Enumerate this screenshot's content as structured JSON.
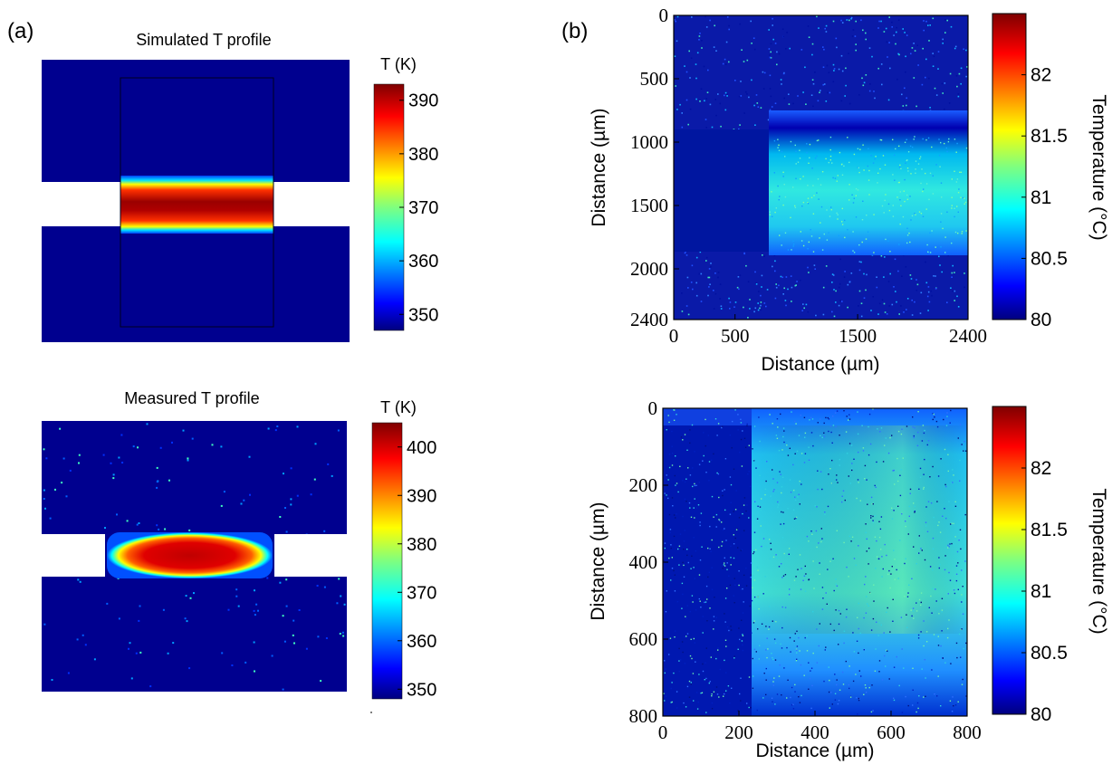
{
  "panel_labels": {
    "a": "(a)",
    "b": "(b)"
  },
  "colors": {
    "jet": [
      "#00007f",
      "#0000ff",
      "#007fff",
      "#00ffff",
      "#7fff7f",
      "#ffff00",
      "#ff7f00",
      "#ff0000",
      "#7f0000"
    ],
    "background_plate": "#00008f",
    "gap": "#ffffff"
  },
  "chart_data": [
    {
      "type": "heatmap",
      "id": "simulated",
      "title": "Simulated T profile",
      "colorbar": {
        "label": "T (K)",
        "ticks": [
          390,
          380,
          370,
          360,
          350
        ],
        "range": [
          347,
          393
        ]
      },
      "description_values": {
        "background_K": 350,
        "peak_K": 392
      }
    },
    {
      "type": "heatmap",
      "id": "measured",
      "title": "Measured T profile",
      "colorbar": {
        "label": "T (K)",
        "ticks": [
          400,
          390,
          380,
          370,
          360,
          350
        ],
        "range": [
          348,
          405
        ]
      },
      "description_values": {
        "background_K": 350,
        "peak_K": 400
      }
    },
    {
      "type": "heatmap",
      "id": "b-top",
      "xlabel": "Distance (µm)",
      "ylabel": "Distance (µm)",
      "xticks": [
        0,
        500,
        1500,
        2400
      ],
      "yticks": [
        0,
        500,
        1000,
        1500,
        2000,
        2400
      ],
      "xlim": [
        0,
        2400
      ],
      "ylim": [
        2400,
        0
      ],
      "colorbar": {
        "label": "Temperature (°C)",
        "ticks": [
          82,
          81.5,
          81,
          80.5,
          80
        ],
        "range": [
          80,
          82.5
        ]
      }
    },
    {
      "type": "heatmap",
      "id": "b-bottom",
      "xlabel": "Distance (µm)",
      "ylabel": "Distance (µm)",
      "xticks": [
        0,
        200,
        400,
        600,
        800
      ],
      "yticks": [
        0,
        200,
        400,
        600,
        800
      ],
      "xlim": [
        0,
        800
      ],
      "ylim": [
        800,
        0
      ],
      "colorbar": {
        "label": "Temperature (°C)",
        "ticks": [
          82,
          81.5,
          81,
          80.5,
          80
        ],
        "range": [
          80,
          82.5
        ]
      }
    }
  ]
}
